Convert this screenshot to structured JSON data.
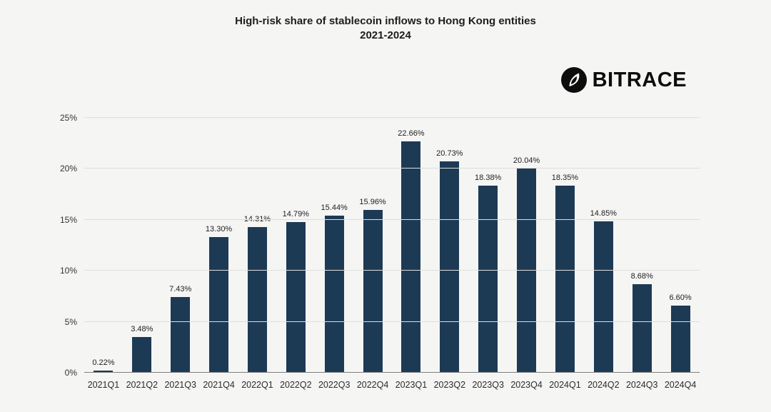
{
  "header": {
    "title_line1": "High-risk share of stablecoin inflows to Hong Kong entities",
    "title_line2": "2021-2024"
  },
  "logo": {
    "text": "BITRACE",
    "icon": "bitrace-logo-icon"
  },
  "chart_data": {
    "type": "bar",
    "title": "High-risk share of stablecoin inflows to Hong Kong entities 2021-2024",
    "categories": [
      "2021Q1",
      "2021Q2",
      "2021Q3",
      "2021Q4",
      "2022Q1",
      "2022Q2",
      "2022Q3",
      "2022Q4",
      "2023Q1",
      "2023Q2",
      "2023Q3",
      "2023Q4",
      "2024Q1",
      "2024Q2",
      "2024Q3",
      "2024Q4"
    ],
    "values": [
      0.22,
      3.48,
      7.43,
      13.3,
      14.31,
      14.79,
      15.44,
      15.96,
      22.66,
      20.73,
      18.38,
      20.04,
      18.35,
      14.85,
      8.68,
      6.6
    ],
    "value_labels": [
      "0.22%",
      "3.48%",
      "7.43%",
      "13.30%",
      "14.31%",
      "14.79%",
      "15.44%",
      "15.96%",
      "22.66%",
      "20.73%",
      "18.38%",
      "20.04%",
      "18.35%",
      "14.85%",
      "8.68%",
      "6.60%"
    ],
    "xlabel": "",
    "ylabel": "",
    "ylim": [
      0,
      25
    ],
    "yticks": [
      0,
      5,
      10,
      15,
      20,
      25
    ],
    "ytick_labels": [
      "0%",
      "5%",
      "10%",
      "15%",
      "20%",
      "25%"
    ],
    "grid": true,
    "legend": "none",
    "bar_color": "#1d3a55",
    "background_color": "#f5f5f4"
  }
}
